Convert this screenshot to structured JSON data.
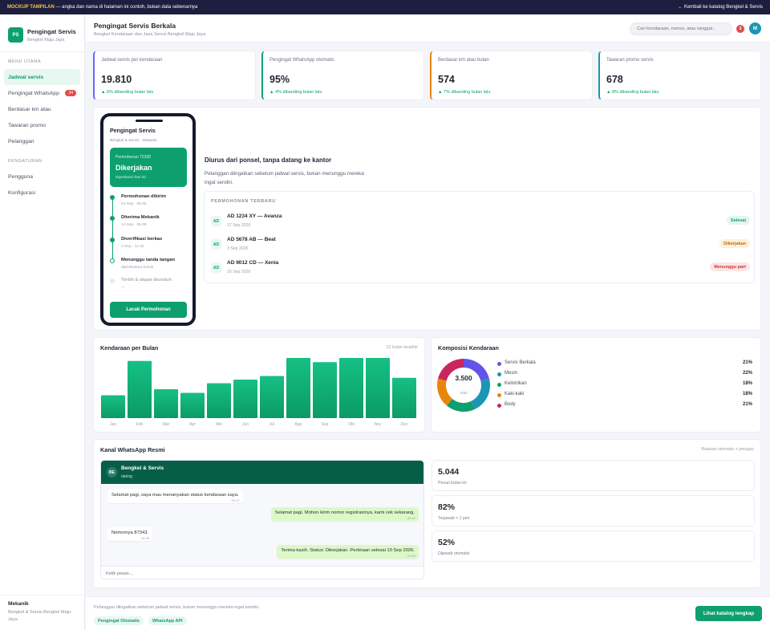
{
  "banner": {
    "tag": "MOCKUP TAMPILAN",
    "text": "— angka dan nama di halaman ini contoh, bukan data sebenarnya",
    "back": "← Kembali ke katalog Bengkel & Servis"
  },
  "brand": {
    "initials": "PS",
    "name": "Pengingat Servis",
    "sub": "Bengkel Maju Jaya"
  },
  "sidebar": {
    "menu_title": "MENU UTAMA",
    "menu": [
      {
        "label": "Jadwal servis"
      },
      {
        "label": "Pengingat WhatsApp",
        "badge": "34"
      },
      {
        "label": "Berdasar km atau"
      },
      {
        "label": "Tawaran promo"
      },
      {
        "label": "Pelanggan"
      }
    ],
    "settings_title": "PENGATURAN",
    "settings": [
      {
        "label": "Pengguna"
      },
      {
        "label": "Konfigurasi"
      }
    ],
    "footer_role": "Mekanik",
    "footer_org": "Bengkel & Servis Bengkel Maju Jaya"
  },
  "header": {
    "title": "Pengingat Servis Berkala",
    "subtitle": "Bengkel Kendaraan dan Jasa Servis Bengkel Maju Jaya",
    "search_placeholder": "Cari kendaraan, nomor, atau tanggal...",
    "notif_count": "3",
    "avatar": "M"
  },
  "stats": [
    {
      "label": "Jadwal servis per kendaraan",
      "value": "19.810",
      "delta": "▲ 6% dibanding bulan lalu",
      "color": "#6c63ff"
    },
    {
      "label": "Pengingat WhatsApp otomatis",
      "value": "95%",
      "delta": "▲ 4% dibanding bulan lalu",
      "color": "#0e9f6e"
    },
    {
      "label": "Berdasar km atau bulan",
      "value": "574",
      "delta": "▲ 7% dibanding bulan lalu",
      "color": "#e8860c"
    },
    {
      "label": "Tawaran promo servis",
      "value": "678",
      "delta": "▲ 8% dibanding bulan lalu",
      "color": "#1a97b5"
    }
  ],
  "phone": {
    "title": "Pengingat Servis",
    "sub": "Bengkel & Servis · Mekanik",
    "req_id": "Permohonan 72328",
    "status": "Dikerjakan",
    "status_sub": "Diperbarui hari ini",
    "timeline": [
      {
        "title": "Permohonan dikirim",
        "time": "24 Sep · 08.46",
        "state": "done"
      },
      {
        "title": "Diterima Mekanik",
        "time": "14 Sep · 09.39",
        "state": "done"
      },
      {
        "title": "Diverifikasi berkas",
        "time": "3 Sep · 11.32",
        "state": "done"
      },
      {
        "title": "Menunggu tanda tangan",
        "time": "diperkirakan besok",
        "state": "current"
      },
      {
        "title": "Terbit & dapat diunduh",
        "time": "—",
        "state": "pending"
      }
    ],
    "button": "Lacak Permohonan"
  },
  "feature": {
    "title": "Diurus dari ponsel, tanpa datang ke kantor",
    "desc": "Pelanggan diingatkan sebelum jadwal servis, bukan menunggu mereka ingat sendiri."
  },
  "recent": {
    "title": "PERMOHONAN TERBARU",
    "items": [
      {
        "icon": "AD",
        "name": "AD 1234 XY — Avanza",
        "date": "17 Sep 2026",
        "status": "Selesai",
        "bg": "#e3f6ec",
        "fg": "#0e9f6e"
      },
      {
        "icon": "AD",
        "name": "AD 5678 AB — Beat",
        "date": "3 Sep 2026",
        "status": "Dikerjakan",
        "bg": "#fdf0dc",
        "fg": "#c26a00"
      },
      {
        "icon": "AD",
        "name": "AD 9012 CD — Xenia",
        "date": "16 Sep 2026",
        "status": "Menunggu part",
        "bg": "#fde5e5",
        "fg": "#c93636"
      }
    ]
  },
  "bar_card": {
    "title": "Kendaraan per Bulan",
    "note": "12 bulan terakhir"
  },
  "donut_card": {
    "title": "Komposisi Kendaraan",
    "total": "3.500",
    "total_label": "total"
  },
  "chart_data": [
    {
      "type": "bar",
      "title": "Kendaraan per Bulan",
      "categories": [
        "Jan",
        "Feb",
        "Mar",
        "Apr",
        "Mei",
        "Jun",
        "Jul",
        "Agu",
        "Sep",
        "Okt",
        "Nov",
        "Des"
      ],
      "values": [
        38,
        95,
        48,
        42,
        58,
        64,
        70,
        100,
        93,
        100,
        100,
        67
      ],
      "color": "#12b67a"
    },
    {
      "type": "pie",
      "title": "Komposisi Kendaraan",
      "categories": [
        "Servis Berkala",
        "Mesin",
        "Kelistrikan",
        "Kaki-kaki",
        "Body"
      ],
      "values": [
        21,
        22,
        18,
        18,
        21
      ],
      "labels": [
        "21%",
        "22%",
        "18%",
        "18%",
        "21%"
      ],
      "colors": [
        "#6354e8",
        "#1a97b5",
        "#0e9f6e",
        "#e8860c",
        "#c8275e"
      ]
    }
  ],
  "whatsapp": {
    "title": "Kanal WhatsApp Resmi",
    "note": "Balasan otomatis + petugas",
    "name": "Bengkel & Servis",
    "initials": "BE",
    "status": "daring",
    "messages": [
      {
        "text": "Selamat pagi, saya mau menanyakan status kendaraan saya.",
        "time": "09.17",
        "dir": "in"
      },
      {
        "text": "Selamat pagi. Mohon kirim nomor registrasinya, kami cek sekarang.",
        "time": "09.42",
        "dir": "out"
      },
      {
        "text": "Nomornya 87343.",
        "time": "09.38",
        "dir": "in"
      },
      {
        "text": "Terima kasih. Status: Dikerjakan. Perkiraan selesai 10 Sep 2026.",
        "time": "09.53",
        "dir": "out"
      }
    ],
    "input_placeholder": "Ketik pesan..."
  },
  "kpis": [
    {
      "value": "5.044",
      "label": "Pesan bulan ini"
    },
    {
      "value": "82%",
      "label": "Terjawab < 1 jam"
    },
    {
      "value": "52%",
      "label": "Dijawab otomatis"
    }
  ],
  "footer": {
    "text": "Pelanggan diingatkan sebelum jadwal servis, bukan menunggu mereka ingat sendiri.",
    "tags": [
      "Pengingat Otomatis",
      "WhatsApp API"
    ],
    "cta": "Lihat katalog lengkap"
  }
}
